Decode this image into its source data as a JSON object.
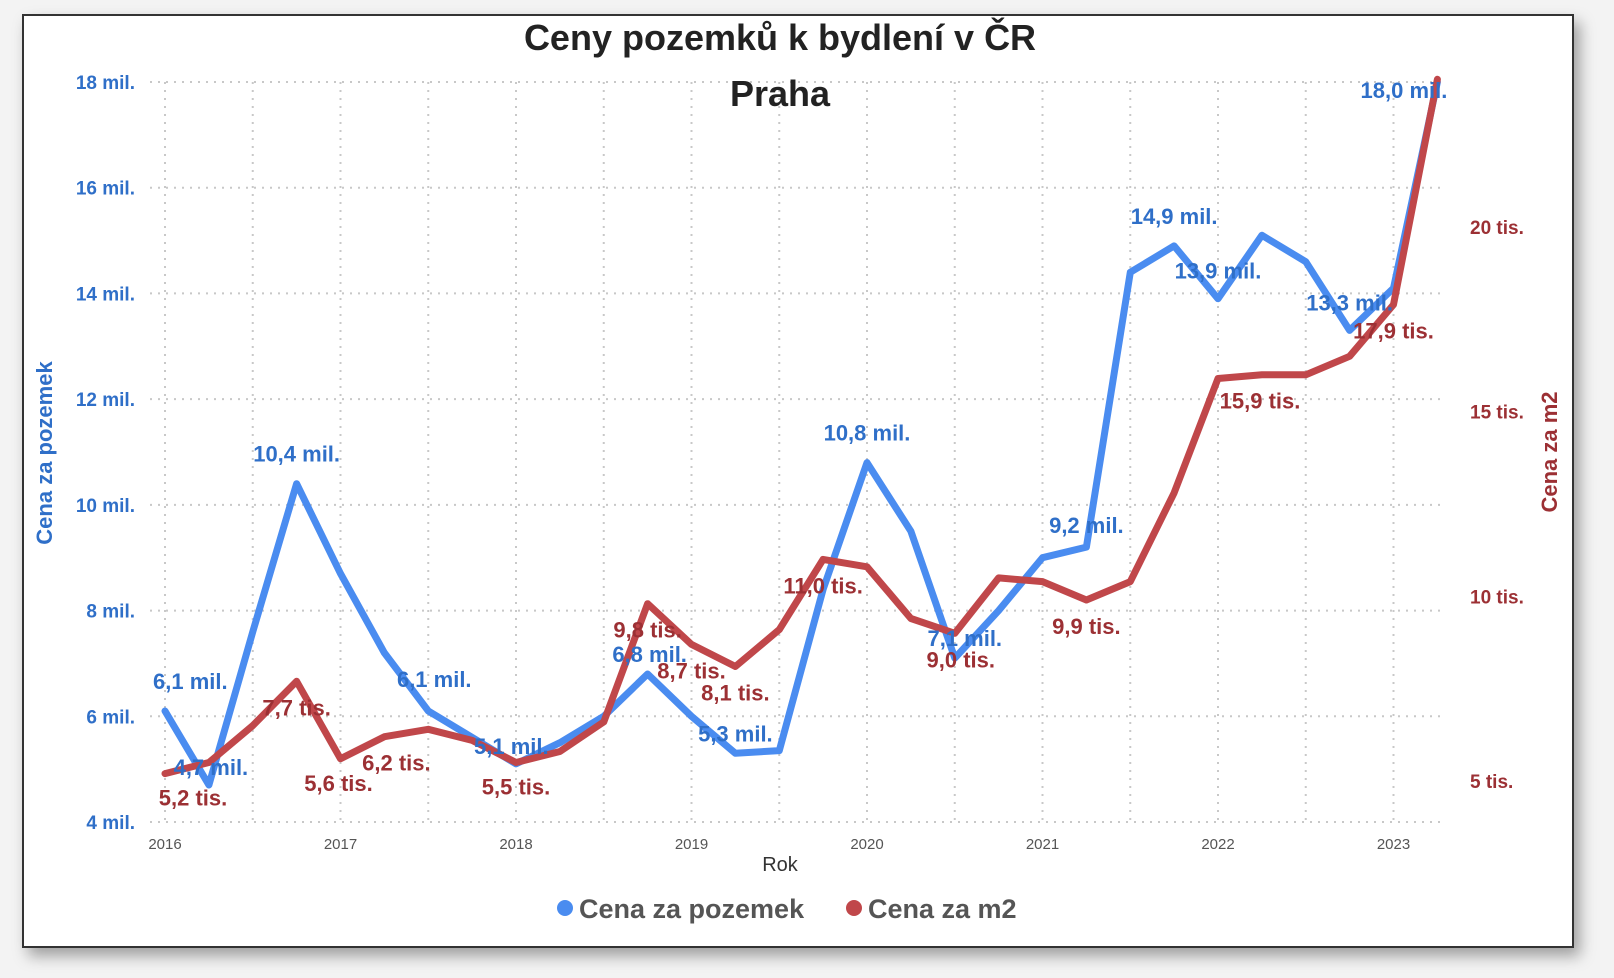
{
  "chart_data": {
    "type": "line",
    "title": "Ceny pozemků k bydlení v ČR",
    "subtitle": "Praha",
    "xlabel": "Rok",
    "ylabel_left": "Cena za pozemek",
    "ylabel_right": "Cena za m2",
    "x_ticks": [
      "2016",
      "2017",
      "2018",
      "2019",
      "2020",
      "2021",
      "2022",
      "2023"
    ],
    "y_left_ticks": [
      "4 mil.",
      "6 mil.",
      "8 mil.",
      "10 mil.",
      "12 mil.",
      "14 mil.",
      "16 mil.",
      "18 mil."
    ],
    "y_right_ticks": [
      "5 tis.",
      "10 tis.",
      "15 tis.",
      "20 tis."
    ],
    "y_left_range": [
      4,
      18
    ],
    "y_right_range": [
      4.5,
      24
    ],
    "x_range": [
      2016,
      2023.3
    ],
    "grid": true,
    "legend": "bottom",
    "colors": {
      "left_series": "#4a8cf0",
      "right_series": "#c0474a",
      "left_axis_text": "#2f6fc8",
      "right_axis_text": "#9c3034"
    },
    "series": [
      {
        "name": "Cena za pozemek",
        "axis": "left",
        "x": [
          2016,
          2016.25,
          2016.5,
          2016.75,
          2017,
          2017.25,
          2017.5,
          2017.75,
          2018,
          2018.25,
          2018.5,
          2018.75,
          2019,
          2019.25,
          2019.5,
          2019.75,
          2020,
          2020.25,
          2020.5,
          2020.75,
          2021,
          2021.25,
          2021.5,
          2021.75,
          2022,
          2022.25,
          2022.5,
          2022.75,
          2023,
          2023.25
        ],
        "values": [
          6.1,
          4.7,
          7.6,
          10.4,
          8.7,
          7.2,
          6.1,
          5.6,
          5.1,
          5.5,
          6.0,
          6.8,
          6.0,
          5.3,
          5.35,
          8.4,
          10.8,
          9.5,
          7.1,
          8.0,
          9.0,
          9.2,
          14.4,
          14.9,
          13.9,
          15.1,
          14.6,
          13.3,
          14.1,
          18.0
        ]
      },
      {
        "name": "Cena za m2",
        "axis": "right",
        "x": [
          2016,
          2016.25,
          2016.5,
          2016.75,
          2017,
          2017.25,
          2017.5,
          2017.75,
          2018,
          2018.25,
          2018.5,
          2018.75,
          2019,
          2019.25,
          2019.5,
          2019.75,
          2020,
          2020.25,
          2020.5,
          2020.75,
          2021,
          2021.25,
          2021.5,
          2021.75,
          2022,
          2022.25,
          2022.5,
          2022.75,
          2023,
          2023.25
        ],
        "values": [
          5.2,
          5.5,
          6.5,
          7.7,
          5.6,
          6.2,
          6.4,
          6.1,
          5.5,
          5.8,
          6.6,
          9.8,
          8.7,
          8.1,
          9.1,
          11.0,
          10.8,
          9.4,
          9.0,
          10.5,
          10.4,
          9.9,
          10.4,
          12.8,
          15.9,
          16.0,
          16.0,
          16.5,
          17.9,
          24.0
        ]
      }
    ],
    "annotations": [
      {
        "series": 0,
        "point": 0,
        "text": "6,1 mil.",
        "anchor": "start",
        "dx": -12,
        "dy": -22
      },
      {
        "series": 0,
        "point": 1,
        "text": "4,7 mil.",
        "anchor": "middle",
        "dx": 2,
        "dy": -10
      },
      {
        "series": 0,
        "point": 3,
        "text": "10,4 mil.",
        "anchor": "middle",
        "dx": 0,
        "dy": -22
      },
      {
        "series": 0,
        "point": 6,
        "text": "6,1 mil.",
        "anchor": "middle",
        "dx": 6,
        "dy": -24
      },
      {
        "series": 0,
        "point": 8,
        "text": "5,1 mil.",
        "anchor": "start",
        "dx": -42,
        "dy": -10
      },
      {
        "series": 0,
        "point": 11,
        "text": "6,8 mil.",
        "anchor": "middle",
        "dx": 2,
        "dy": -12
      },
      {
        "series": 0,
        "point": 13,
        "text": "5,3 mil.",
        "anchor": "middle",
        "dx": 0,
        "dy": -12
      },
      {
        "series": 0,
        "point": 16,
        "text": "10,8 mil.",
        "anchor": "middle",
        "dx": 0,
        "dy": -22
      },
      {
        "series": 0,
        "point": 18,
        "text": "7,1 mil.",
        "anchor": "middle",
        "dx": 10,
        "dy": -12
      },
      {
        "series": 0,
        "point": 21,
        "text": "9,2 mil.",
        "anchor": "middle",
        "dx": 0,
        "dy": -14
      },
      {
        "series": 0,
        "point": 23,
        "text": "14,9 mil.",
        "anchor": "middle",
        "dx": 0,
        "dy": -22
      },
      {
        "series": 0,
        "point": 24,
        "text": "13,9 mil.",
        "anchor": "middle",
        "dx": 0,
        "dy": -20
      },
      {
        "series": 0,
        "point": 27,
        "text": "13,3 mil.",
        "anchor": "middle",
        "dx": 0,
        "dy": -20
      },
      {
        "series": 0,
        "point": 29,
        "text": "18,0 mil.",
        "anchor": "end",
        "dx": 10,
        "dy": 16
      },
      {
        "series": 1,
        "point": 0,
        "text": "5,2 tis.",
        "anchor": "middle",
        "dx": 28,
        "dy": 32
      },
      {
        "series": 1,
        "point": 3,
        "text": "7,7 tis.",
        "anchor": "middle",
        "dx": 0,
        "dy": 34
      },
      {
        "series": 1,
        "point": 4,
        "text": "5,6 tis.",
        "anchor": "middle",
        "dx": -2,
        "dy": 32
      },
      {
        "series": 1,
        "point": 5,
        "text": "6,2 tis.",
        "anchor": "middle",
        "dx": 12,
        "dy": 34
      },
      {
        "series": 1,
        "point": 8,
        "text": "5,5 tis.",
        "anchor": "middle",
        "dx": 0,
        "dy": 32
      },
      {
        "series": 1,
        "point": 11,
        "text": "9,8 tis.",
        "anchor": "middle",
        "dx": 0,
        "dy": 34
      },
      {
        "series": 1,
        "point": 12,
        "text": "8,7 tis.",
        "anchor": "middle",
        "dx": 0,
        "dy": 34
      },
      {
        "series": 1,
        "point": 13,
        "text": "8,1 tis.",
        "anchor": "middle",
        "dx": 0,
        "dy": 34
      },
      {
        "series": 1,
        "point": 15,
        "text": "11,0 tis.",
        "anchor": "middle",
        "dx": 0,
        "dy": 34
      },
      {
        "series": 1,
        "point": 18,
        "text": "9,0 tis.",
        "anchor": "middle",
        "dx": 6,
        "dy": 34
      },
      {
        "series": 1,
        "point": 21,
        "text": "9,9 tis.",
        "anchor": "middle",
        "dx": 0,
        "dy": 34
      },
      {
        "series": 1,
        "point": 24,
        "text": "15,9 tis.",
        "anchor": "middle",
        "dx": 42,
        "dy": 30
      },
      {
        "series": 1,
        "point": 28,
        "text": "17,9 tis.",
        "anchor": "middle",
        "dx": 0,
        "dy": 34
      }
    ]
  }
}
